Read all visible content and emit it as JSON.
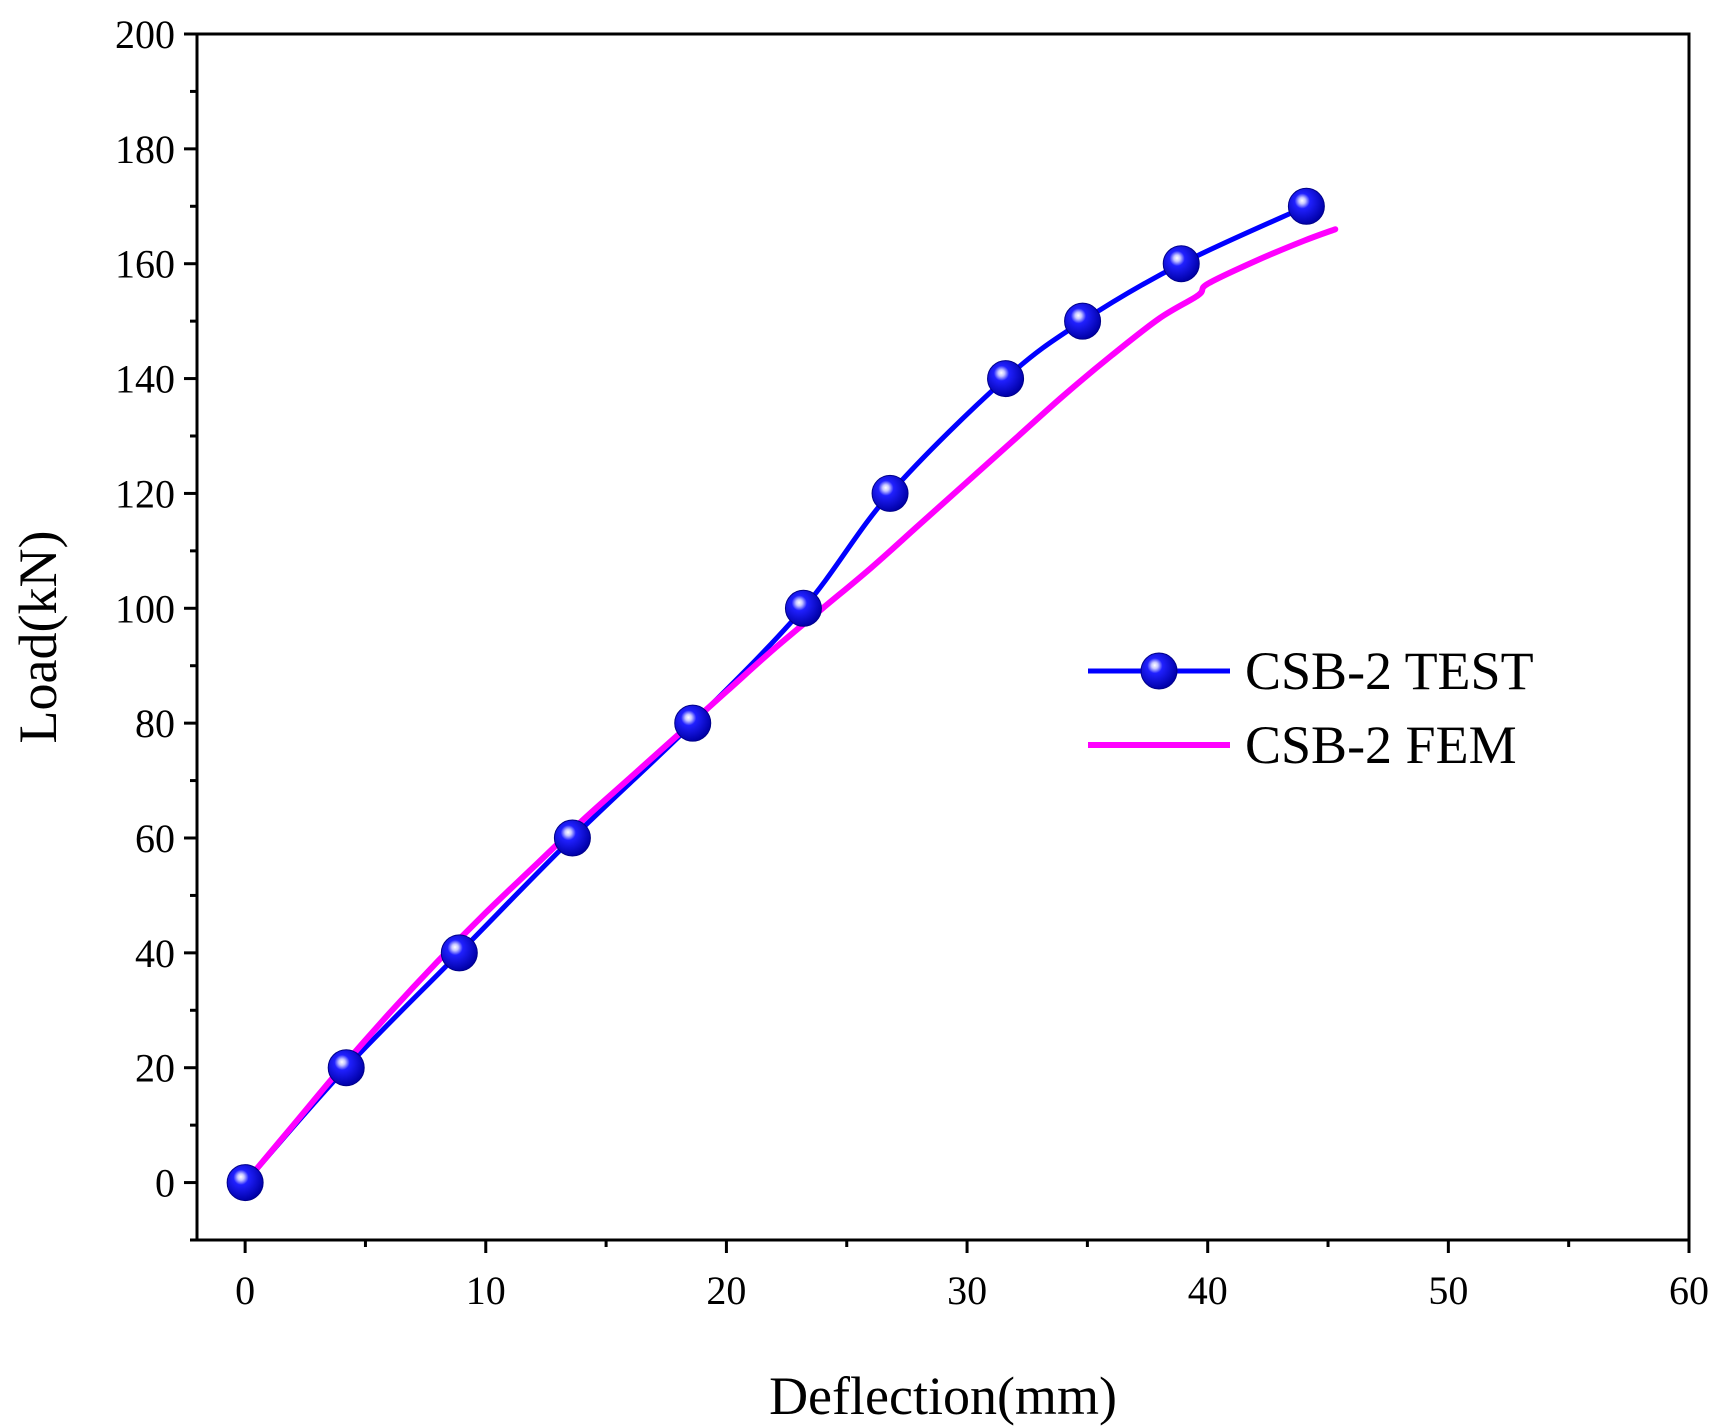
{
  "chart_data": {
    "type": "line",
    "title": "",
    "xlabel": "Deflection(mm)",
    "ylabel": "Load(kN)",
    "xlim": [
      -2,
      60
    ],
    "ylim": [
      -10,
      200
    ],
    "x_ticks": [
      0,
      10,
      20,
      30,
      40,
      50,
      60
    ],
    "y_ticks": [
      0,
      20,
      40,
      60,
      80,
      100,
      120,
      140,
      160,
      180,
      200
    ],
    "grid": false,
    "legend_position": "right",
    "series": [
      {
        "name": "CSB-2 TEST",
        "color": "#0000ff",
        "marker": "sphere",
        "x": [
          0,
          4.2,
          8.9,
          13.6,
          18.6,
          23.2,
          26.8,
          31.6,
          34.8,
          38.9,
          44.1
        ],
        "y": [
          0,
          20,
          40,
          60,
          80,
          100,
          120,
          140,
          150,
          160,
          170
        ]
      },
      {
        "name": "CSB-2 FEM",
        "color": "#ff00ff",
        "marker": "none",
        "x": [
          0.2,
          2,
          4,
          6,
          8,
          10,
          12,
          14,
          16,
          18,
          20,
          22,
          24,
          26,
          28,
          30,
          32,
          34,
          36,
          38,
          39.6,
          40,
          42,
          44,
          45.3
        ],
        "y": [
          1,
          10,
          20,
          29.5,
          38.5,
          47,
          55,
          63,
          70.5,
          78,
          85.5,
          93,
          100,
          107,
          114.5,
          122,
          129.5,
          137,
          144,
          150.5,
          154.5,
          156.5,
          160.5,
          164,
          166
        ]
      }
    ]
  }
}
